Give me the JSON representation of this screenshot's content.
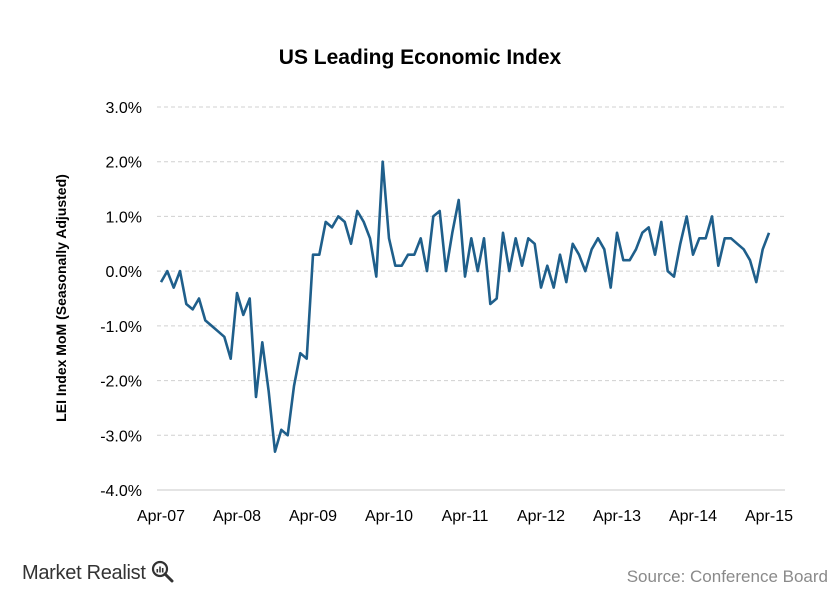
{
  "chart_data": {
    "type": "line",
    "title": "US Leading Economic Index",
    "ylabel": "LEI Index MoM (Seasonally Adjusted)",
    "xlabel": "",
    "ylim": [
      -4.0,
      3.0
    ],
    "yticks": [
      -4.0,
      -3.0,
      -2.0,
      -1.0,
      0.0,
      1.0,
      2.0,
      3.0
    ],
    "ytick_labels": [
      "-4.0%",
      "-3.0%",
      "-2.0%",
      "-1.0%",
      "0.0%",
      "1.0%",
      "2.0%",
      "3.0%"
    ],
    "xtick_labels": [
      "Apr-07",
      "Apr-08",
      "Apr-09",
      "Apr-10",
      "Apr-11",
      "Apr-12",
      "Apr-13",
      "Apr-14",
      "Apr-15"
    ],
    "grid": "horizontal dashed",
    "line_color": "#1f5f8b",
    "series": [
      {
        "name": "",
        "start": "Apr-07",
        "end": "Apr-15",
        "values": [
          -0.2,
          0.0,
          -0.3,
          0.0,
          -0.6,
          -0.7,
          -0.5,
          -0.9,
          -1.0,
          -1.1,
          -1.2,
          -1.6,
          -0.4,
          -0.8,
          -0.5,
          -2.3,
          -1.3,
          -2.2,
          -3.3,
          -2.9,
          -3.0,
          -2.1,
          -1.5,
          -1.6,
          0.3,
          0.3,
          0.9,
          0.8,
          1.0,
          0.9,
          0.5,
          1.1,
          0.9,
          0.6,
          -0.1,
          2.0,
          0.6,
          0.1,
          0.1,
          0.3,
          0.3,
          0.6,
          0.0,
          1.0,
          1.1,
          0.0,
          0.7,
          1.3,
          -0.1,
          0.6,
          0.0,
          0.6,
          -0.6,
          -0.5,
          0.7,
          0.0,
          0.6,
          0.1,
          0.6,
          0.5,
          -0.3,
          0.1,
          -0.3,
          0.3,
          -0.2,
          0.5,
          0.3,
          0.0,
          0.4,
          0.6,
          0.4,
          -0.3,
          0.7,
          0.2,
          0.2,
          0.4,
          0.7,
          0.8,
          0.3,
          0.9,
          0.0,
          -0.1,
          0.5,
          1.0,
          0.3,
          0.6,
          0.6,
          1.0,
          0.1,
          0.6,
          0.6,
          0.5,
          0.4,
          0.2,
          -0.2,
          0.4,
          0.7
        ]
      }
    ]
  },
  "brand": {
    "name": "Market Realist"
  },
  "source": "Source: Conference Board"
}
